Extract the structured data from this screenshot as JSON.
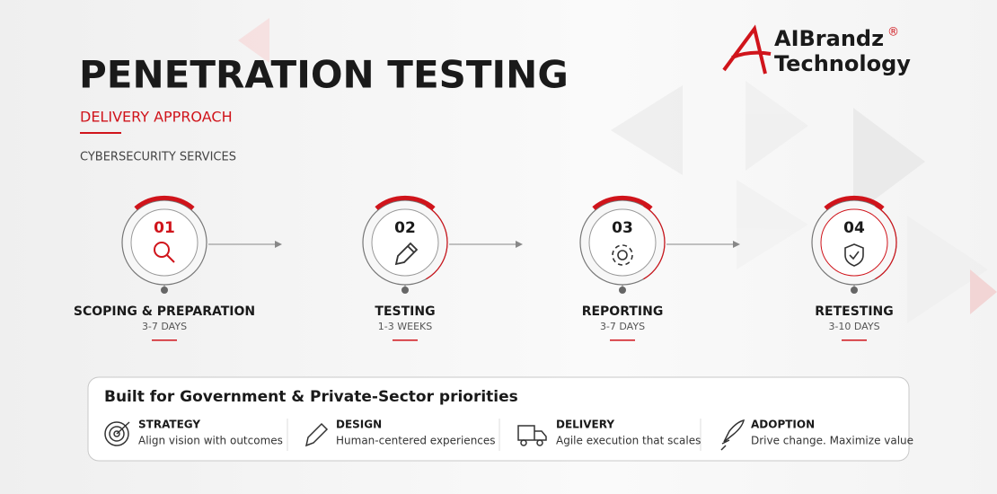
{
  "header": {
    "title": "PENETRATION TESTING",
    "subtitle": "DELIVERY APPROACH",
    "tagline": "CYBERSECURITY SERVICES"
  },
  "logo": {
    "name": "AIBrandz",
    "mark": "®",
    "line2": "Technology"
  },
  "steps": [
    {
      "number": "01",
      "title": "SCOPING & PREPARATION",
      "duration": "3-7 DAYS"
    },
    {
      "number": "02",
      "title": "TESTING",
      "duration": "1-3 WEEKS"
    },
    {
      "number": "03",
      "title": "REPORTING",
      "duration": "3-7 DAYS"
    },
    {
      "number": "04",
      "title": "RETESTING",
      "duration": "3-10 DAYS"
    }
  ],
  "panel": {
    "heading": "Built for Government & Private-Sector priorities",
    "items": [
      {
        "title": "STRATEGY",
        "text": "Align vision with outcomes"
      },
      {
        "title": "DESIGN",
        "text": "Human-centered experiences"
      },
      {
        "title": "DELIVERY",
        "text": "Agile execution that scales"
      },
      {
        "title": "ADOPTION",
        "text": "Drive change. Maximize value"
      }
    ]
  }
}
